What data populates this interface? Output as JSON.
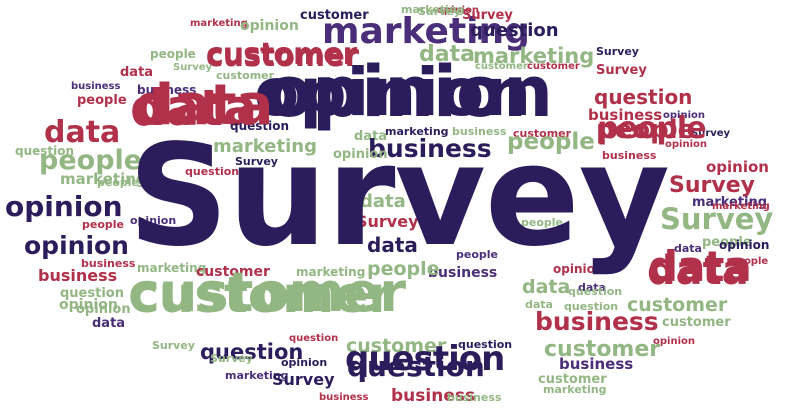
{
  "colors": {
    "navy": "#2b1d5c",
    "purple": "#4b2e7a",
    "red": "#b1304a",
    "green": "#93b783"
  },
  "words": [
    {
      "text": "opinion",
      "color": "red"
    },
    {
      "text": "customer",
      "color": "navy"
    },
    {
      "text": "Survey",
      "color": "green"
    },
    {
      "text": "marketing",
      "color": "red"
    },
    {
      "text": "opinion",
      "color": "green"
    },
    {
      "text": "marketing",
      "color": "purple"
    },
    {
      "text": "Survey",
      "color": "red"
    },
    {
      "text": "marketing",
      "color": "green"
    },
    {
      "text": "question",
      "color": "navy"
    },
    {
      "text": "people",
      "color": "green"
    },
    {
      "text": "customer",
      "color": "red"
    },
    {
      "text": "data",
      "color": "green"
    },
    {
      "text": "marketing",
      "color": "green"
    },
    {
      "text": "Survey",
      "color": "navy"
    },
    {
      "text": "business",
      "color": "purple"
    },
    {
      "text": "Survey",
      "color": "green"
    },
    {
      "text": "customer",
      "color": "green"
    },
    {
      "text": "data",
      "color": "red"
    },
    {
      "text": "opinion",
      "color": "navy"
    },
    {
      "text": "customer",
      "color": "green"
    },
    {
      "text": "customer",
      "color": "red"
    },
    {
      "text": "Survey",
      "color": "red"
    },
    {
      "text": "business",
      "color": "purple"
    },
    {
      "text": "data",
      "color": "red"
    },
    {
      "text": "question",
      "color": "red"
    },
    {
      "text": "people",
      "color": "red"
    },
    {
      "text": "business",
      "color": "red"
    },
    {
      "text": "opinion",
      "color": "purple"
    },
    {
      "text": "data",
      "color": "red"
    },
    {
      "text": "question",
      "color": "navy"
    },
    {
      "text": "marketing",
      "color": "navy"
    },
    {
      "text": "data",
      "color": "green"
    },
    {
      "text": "business",
      "color": "green"
    },
    {
      "text": "customer",
      "color": "red"
    },
    {
      "text": "people",
      "color": "red"
    },
    {
      "text": "Survey",
      "color": "navy"
    },
    {
      "text": "question",
      "color": "green"
    },
    {
      "text": "marketing",
      "color": "green"
    },
    {
      "text": "business",
      "color": "navy"
    },
    {
      "text": "people",
      "color": "green"
    },
    {
      "text": "opinion",
      "color": "red"
    },
    {
      "text": "business",
      "color": "red"
    },
    {
      "text": "opinion",
      "color": "green"
    },
    {
      "text": "people",
      "color": "green"
    },
    {
      "text": "Survey",
      "color": "navy"
    },
    {
      "text": "question",
      "color": "red"
    },
    {
      "text": "opinion",
      "color": "red"
    },
    {
      "text": "marketing",
      "color": "green"
    },
    {
      "text": "people",
      "color": "green"
    },
    {
      "text": "Survey",
      "color": "red"
    },
    {
      "text": "marketing",
      "color": "purple"
    },
    {
      "text": "marketing",
      "color": "red"
    },
    {
      "text": "opinion",
      "color": "navy"
    },
    {
      "text": "opinion",
      "color": "navy"
    },
    {
      "text": "data",
      "color": "green"
    },
    {
      "text": "people",
      "color": "red"
    },
    {
      "text": "Survey",
      "color": "red"
    },
    {
      "text": "Survey",
      "color": "green"
    },
    {
      "text": "opinion",
      "color": "purple"
    },
    {
      "text": "people",
      "color": "green"
    },
    {
      "text": "data",
      "color": "navy"
    },
    {
      "text": "people",
      "color": "green"
    },
    {
      "text": "opinion",
      "color": "navy"
    },
    {
      "text": "people",
      "color": "red"
    },
    {
      "text": "data",
      "color": "purple"
    },
    {
      "text": "people",
      "color": "purple"
    },
    {
      "text": "data",
      "color": "red"
    },
    {
      "text": "opinion",
      "color": "red"
    },
    {
      "text": "business",
      "color": "red"
    },
    {
      "text": "business",
      "color": "red"
    },
    {
      "text": "business",
      "color": "purple"
    },
    {
      "text": "marketing",
      "color": "green"
    },
    {
      "text": "customer",
      "color": "red"
    },
    {
      "text": "marketing",
      "color": "green"
    },
    {
      "text": "people",
      "color": "green"
    },
    {
      "text": "data",
      "color": "purple"
    },
    {
      "text": "opinion",
      "color": "green"
    },
    {
      "text": "customer",
      "color": "green"
    },
    {
      "text": "data",
      "color": "green"
    },
    {
      "text": "question",
      "color": "green"
    },
    {
      "text": "question",
      "color": "green"
    },
    {
      "text": "question",
      "color": "green"
    },
    {
      "text": "customer",
      "color": "green"
    },
    {
      "text": "opinion",
      "color": "green"
    },
    {
      "text": "data",
      "color": "green"
    },
    {
      "text": "business",
      "color": "red"
    },
    {
      "text": "data",
      "color": "purple"
    },
    {
      "text": "customer",
      "color": "green"
    },
    {
      "text": "question",
      "color": "navy"
    },
    {
      "text": "question",
      "color": "red"
    },
    {
      "text": "Survey",
      "color": "green"
    },
    {
      "text": "customer",
      "color": "green"
    },
    {
      "text": "Survey",
      "color": "green"
    },
    {
      "text": "question",
      "color": "navy"
    },
    {
      "text": "question",
      "color": "navy"
    },
    {
      "text": "customer",
      "color": "green"
    },
    {
      "text": "opinion",
      "color": "red"
    },
    {
      "text": "opinion",
      "color": "navy"
    },
    {
      "text": "marketing",
      "color": "purple"
    },
    {
      "text": "Survey",
      "color": "navy"
    },
    {
      "text": "business",
      "color": "purple"
    },
    {
      "text": "business",
      "color": "red"
    },
    {
      "text": "business",
      "color": "red"
    },
    {
      "text": "business",
      "color": "green"
    },
    {
      "text": "customer",
      "color": "green"
    },
    {
      "text": "marketing",
      "color": "green"
    }
  ]
}
